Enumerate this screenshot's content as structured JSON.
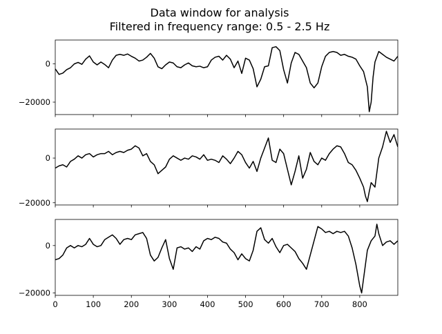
{
  "title_line1": "Data window for analysis",
  "title_line2": "Filtered in frequency range: 0.5 - 2.5  Hz",
  "chart_data": {
    "type": "line",
    "sharex": true,
    "xlim": [
      0,
      900
    ],
    "x_ticks": [
      "0",
      "100",
      "200",
      "300",
      "400",
      "500",
      "600",
      "700",
      "800"
    ],
    "line_color": "#000000",
    "subplots": [
      {
        "ylim": [
          -26500,
          12500
        ],
        "y_ticks": [
          {
            "value": 0,
            "label": "0"
          },
          {
            "value": -20000,
            "label": "−20000"
          }
        ],
        "points": [
          [
            0,
            -2600
          ],
          [
            10,
            -5500
          ],
          [
            20,
            -4800
          ],
          [
            30,
            -3000
          ],
          [
            40,
            -2000
          ],
          [
            50,
            0
          ],
          [
            60,
            800
          ],
          [
            70,
            -200
          ],
          [
            80,
            2500
          ],
          [
            90,
            4200
          ],
          [
            100,
            1000
          ],
          [
            110,
            -500
          ],
          [
            120,
            1000
          ],
          [
            130,
            -300
          ],
          [
            140,
            -2000
          ],
          [
            150,
            2000
          ],
          [
            160,
            4500
          ],
          [
            170,
            5000
          ],
          [
            180,
            4500
          ],
          [
            190,
            5200
          ],
          [
            200,
            4000
          ],
          [
            210,
            3000
          ],
          [
            220,
            1500
          ],
          [
            230,
            2000
          ],
          [
            240,
            3500
          ],
          [
            250,
            5500
          ],
          [
            260,
            3000
          ],
          [
            270,
            -1500
          ],
          [
            280,
            -2500
          ],
          [
            290,
            -500
          ],
          [
            300,
            1000
          ],
          [
            310,
            500
          ],
          [
            320,
            -1500
          ],
          [
            330,
            -2000
          ],
          [
            340,
            -500
          ],
          [
            350,
            500
          ],
          [
            360,
            -1000
          ],
          [
            370,
            -1500
          ],
          [
            380,
            -1200
          ],
          [
            390,
            -2000
          ],
          [
            400,
            -1500
          ],
          [
            410,
            2000
          ],
          [
            420,
            3500
          ],
          [
            430,
            4000
          ],
          [
            440,
            2000
          ],
          [
            450,
            4500
          ],
          [
            460,
            2500
          ],
          [
            470,
            -2000
          ],
          [
            480,
            1500
          ],
          [
            490,
            -5000
          ],
          [
            500,
            3000
          ],
          [
            510,
            2000
          ],
          [
            520,
            -2500
          ],
          [
            530,
            -12000
          ],
          [
            540,
            -8000
          ],
          [
            550,
            -1500
          ],
          [
            560,
            -1000
          ],
          [
            570,
            8500
          ],
          [
            580,
            9000
          ],
          [
            590,
            7000
          ],
          [
            600,
            -3000
          ],
          [
            610,
            -10000
          ],
          [
            620,
            500
          ],
          [
            630,
            6000
          ],
          [
            640,
            5000
          ],
          [
            650,
            1500
          ],
          [
            660,
            -2000
          ],
          [
            670,
            -10000
          ],
          [
            680,
            -12500
          ],
          [
            690,
            -10000
          ],
          [
            700,
            -1500
          ],
          [
            710,
            4000
          ],
          [
            720,
            6000
          ],
          [
            730,
            6500
          ],
          [
            740,
            6000
          ],
          [
            750,
            4500
          ],
          [
            760,
            5000
          ],
          [
            770,
            4000
          ],
          [
            780,
            3500
          ],
          [
            790,
            2500
          ],
          [
            800,
            -1000
          ],
          [
            810,
            -4000
          ],
          [
            820,
            -12000
          ],
          [
            825,
            -25000
          ],
          [
            830,
            -20000
          ],
          [
            835,
            -7000
          ],
          [
            840,
            1000
          ],
          [
            850,
            6500
          ],
          [
            860,
            5000
          ],
          [
            870,
            3500
          ],
          [
            880,
            2500
          ],
          [
            890,
            1500
          ],
          [
            900,
            4000
          ]
        ]
      },
      {
        "ylim": [
          -21000,
          13000
        ],
        "y_ticks": [
          {
            "value": 0,
            "label": "0"
          },
          {
            "value": -20000,
            "label": "−20000"
          }
        ],
        "points": [
          [
            0,
            -4500
          ],
          [
            10,
            -3500
          ],
          [
            20,
            -3000
          ],
          [
            30,
            -4000
          ],
          [
            40,
            -1500
          ],
          [
            50,
            -500
          ],
          [
            60,
            1000
          ],
          [
            70,
            0
          ],
          [
            80,
            1500
          ],
          [
            90,
            2000
          ],
          [
            100,
            500
          ],
          [
            110,
            1500
          ],
          [
            120,
            2000
          ],
          [
            130,
            2000
          ],
          [
            140,
            3000
          ],
          [
            150,
            1500
          ],
          [
            160,
            2500
          ],
          [
            170,
            3000
          ],
          [
            180,
            2500
          ],
          [
            190,
            3500
          ],
          [
            200,
            4000
          ],
          [
            210,
            5500
          ],
          [
            220,
            4500
          ],
          [
            230,
            1000
          ],
          [
            240,
            2000
          ],
          [
            250,
            -1500
          ],
          [
            260,
            -3000
          ],
          [
            270,
            -7000
          ],
          [
            280,
            -5500
          ],
          [
            290,
            -4000
          ],
          [
            300,
            -500
          ],
          [
            310,
            1000
          ],
          [
            320,
            0
          ],
          [
            330,
            -1000
          ],
          [
            340,
            0
          ],
          [
            350,
            -500
          ],
          [
            360,
            1000
          ],
          [
            370,
            500
          ],
          [
            380,
            -500
          ],
          [
            390,
            1500
          ],
          [
            400,
            -1000
          ],
          [
            410,
            -500
          ],
          [
            420,
            -1000
          ],
          [
            430,
            -2000
          ],
          [
            440,
            1000
          ],
          [
            450,
            -500
          ],
          [
            460,
            -2500
          ],
          [
            470,
            0
          ],
          [
            480,
            3000
          ],
          [
            490,
            1500
          ],
          [
            500,
            -2000
          ],
          [
            510,
            -4500
          ],
          [
            520,
            -1500
          ],
          [
            530,
            -6000
          ],
          [
            540,
            0
          ],
          [
            550,
            4500
          ],
          [
            560,
            9000
          ],
          [
            570,
            -1000
          ],
          [
            580,
            -2000
          ],
          [
            590,
            4000
          ],
          [
            600,
            2000
          ],
          [
            610,
            -5000
          ],
          [
            620,
            -12000
          ],
          [
            630,
            -6000
          ],
          [
            640,
            1000
          ],
          [
            650,
            -9000
          ],
          [
            660,
            -5000
          ],
          [
            670,
            2500
          ],
          [
            680,
            -1500
          ],
          [
            690,
            -3000
          ],
          [
            700,
            0
          ],
          [
            710,
            -1000
          ],
          [
            720,
            2000
          ],
          [
            730,
            4000
          ],
          [
            740,
            5500
          ],
          [
            750,
            5000
          ],
          [
            760,
            2000
          ],
          [
            770,
            -2000
          ],
          [
            780,
            -3000
          ],
          [
            790,
            -5500
          ],
          [
            800,
            -9000
          ],
          [
            810,
            -13000
          ],
          [
            815,
            -17000
          ],
          [
            820,
            -19500
          ],
          [
            825,
            -15000
          ],
          [
            830,
            -11000
          ],
          [
            840,
            -13000
          ],
          [
            850,
            0
          ],
          [
            860,
            5000
          ],
          [
            870,
            12000
          ],
          [
            880,
            7000
          ],
          [
            890,
            10500
          ],
          [
            900,
            5000
          ]
        ]
      },
      {
        "ylim": [
          -21000,
          11000
        ],
        "y_ticks": [
          {
            "value": 0,
            "label": "0"
          },
          {
            "value": -20000,
            "label": "−20000"
          }
        ],
        "points": [
          [
            0,
            -6000
          ],
          [
            10,
            -5500
          ],
          [
            20,
            -4000
          ],
          [
            30,
            -1000
          ],
          [
            40,
            0
          ],
          [
            50,
            -1000
          ],
          [
            60,
            0
          ],
          [
            70,
            -500
          ],
          [
            80,
            500
          ],
          [
            90,
            3000
          ],
          [
            100,
            500
          ],
          [
            110,
            -500
          ],
          [
            120,
            0
          ],
          [
            130,
            2500
          ],
          [
            140,
            3500
          ],
          [
            150,
            4500
          ],
          [
            160,
            3000
          ],
          [
            170,
            500
          ],
          [
            180,
            2500
          ],
          [
            190,
            3000
          ],
          [
            200,
            2500
          ],
          [
            210,
            4500
          ],
          [
            220,
            5000
          ],
          [
            230,
            5500
          ],
          [
            240,
            3000
          ],
          [
            250,
            -4000
          ],
          [
            260,
            -6500
          ],
          [
            270,
            -5000
          ],
          [
            280,
            -1000
          ],
          [
            290,
            2500
          ],
          [
            300,
            -5500
          ],
          [
            310,
            -10000
          ],
          [
            320,
            -1000
          ],
          [
            330,
            -500
          ],
          [
            340,
            -1500
          ],
          [
            350,
            -1000
          ],
          [
            360,
            -2500
          ],
          [
            370,
            -500
          ],
          [
            380,
            -1500
          ],
          [
            390,
            2000
          ],
          [
            400,
            3000
          ],
          [
            410,
            2500
          ],
          [
            420,
            3500
          ],
          [
            430,
            3000
          ],
          [
            440,
            1500
          ],
          [
            450,
            1000
          ],
          [
            460,
            -1500
          ],
          [
            470,
            -3000
          ],
          [
            480,
            -6000
          ],
          [
            490,
            -3500
          ],
          [
            500,
            -5500
          ],
          [
            510,
            -6500
          ],
          [
            520,
            -2000
          ],
          [
            530,
            6000
          ],
          [
            540,
            7500
          ],
          [
            550,
            2500
          ],
          [
            560,
            1000
          ],
          [
            570,
            3000
          ],
          [
            580,
            -500
          ],
          [
            590,
            -3000
          ],
          [
            600,
            0
          ],
          [
            610,
            500
          ],
          [
            620,
            -1000
          ],
          [
            630,
            -2500
          ],
          [
            640,
            -5500
          ],
          [
            650,
            -7500
          ],
          [
            660,
            -10000
          ],
          [
            670,
            -4000
          ],
          [
            680,
            2000
          ],
          [
            690,
            8000
          ],
          [
            700,
            7000
          ],
          [
            710,
            5500
          ],
          [
            720,
            6000
          ],
          [
            730,
            5000
          ],
          [
            740,
            6000
          ],
          [
            750,
            5500
          ],
          [
            760,
            6000
          ],
          [
            770,
            4000
          ],
          [
            780,
            -1000
          ],
          [
            790,
            -8000
          ],
          [
            800,
            -17000
          ],
          [
            805,
            -20000
          ],
          [
            810,
            -14000
          ],
          [
            820,
            -2000
          ],
          [
            830,
            2000
          ],
          [
            840,
            4000
          ],
          [
            845,
            9000
          ],
          [
            850,
            5000
          ],
          [
            860,
            0
          ],
          [
            870,
            1500
          ],
          [
            880,
            2000
          ],
          [
            890,
            500
          ],
          [
            900,
            2000
          ]
        ]
      }
    ]
  }
}
